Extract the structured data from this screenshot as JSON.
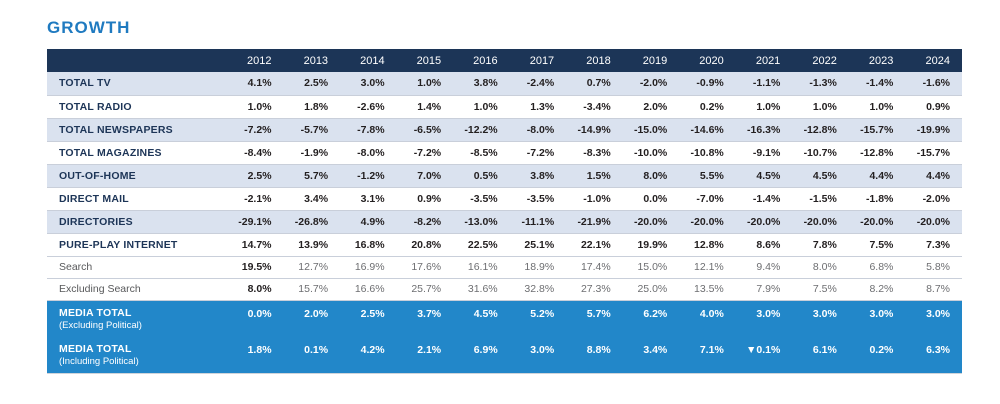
{
  "title": "GROWTH",
  "colors": {
    "title_blue": "#1F7AC0",
    "header_navy": "#1C3557",
    "stripe_light_blue": "#DAE2EF",
    "media_total_blue": "#2287C9",
    "label_navy": "#1D3557",
    "value_dark": "#231F20",
    "sub_gray": "#6D6E71"
  },
  "chart_data": {
    "type": "table",
    "title": "GROWTH",
    "columns": [
      "2012",
      "2013",
      "2014",
      "2015",
      "2016",
      "2017",
      "2018",
      "2019",
      "2020",
      "2021",
      "2022",
      "2023",
      "2024"
    ],
    "rows": [
      {
        "label": "TOTAL TV",
        "style": "main",
        "stripe": "light",
        "values": [
          "4.1%",
          "2.5%",
          "3.0%",
          "1.0%",
          "3.8%",
          "-2.4%",
          "0.7%",
          "-2.0%",
          "-0.9%",
          "-1.1%",
          "-1.3%",
          "-1.4%",
          "-1.6%"
        ]
      },
      {
        "label": "TOTAL RADIO",
        "style": "main",
        "stripe": "white",
        "values": [
          "1.0%",
          "1.8%",
          "-2.6%",
          "1.4%",
          "1.0%",
          "1.3%",
          "-3.4%",
          "2.0%",
          "0.2%",
          "1.0%",
          "1.0%",
          "1.0%",
          "0.9%"
        ]
      },
      {
        "label": "TOTAL NEWSPAPERS",
        "style": "main",
        "stripe": "light",
        "values": [
          "-7.2%",
          "-5.7%",
          "-7.8%",
          "-6.5%",
          "-12.2%",
          "-8.0%",
          "-14.9%",
          "-15.0%",
          "-14.6%",
          "-16.3%",
          "-12.8%",
          "-15.7%",
          "-19.9%"
        ]
      },
      {
        "label": "TOTAL MAGAZINES",
        "style": "main",
        "stripe": "white",
        "values": [
          "-8.4%",
          "-1.9%",
          "-8.0%",
          "-7.2%",
          "-8.5%",
          "-7.2%",
          "-8.3%",
          "-10.0%",
          "-10.8%",
          "-9.1%",
          "-10.7%",
          "-12.8%",
          "-15.7%"
        ]
      },
      {
        "label": "OUT-OF-HOME",
        "style": "main",
        "stripe": "light",
        "values": [
          "2.5%",
          "5.7%",
          "-1.2%",
          "7.0%",
          "0.5%",
          "3.8%",
          "1.5%",
          "8.0%",
          "5.5%",
          "4.5%",
          "4.5%",
          "4.4%",
          "4.4%"
        ]
      },
      {
        "label": "DIRECT MAIL",
        "style": "main",
        "stripe": "white",
        "values": [
          "-2.1%",
          "3.4%",
          "3.1%",
          "0.9%",
          "-3.5%",
          "-3.5%",
          "-1.0%",
          "0.0%",
          "-7.0%",
          "-1.4%",
          "-1.5%",
          "-1.8%",
          "-2.0%"
        ]
      },
      {
        "label": "DIRECTORIES",
        "style": "main",
        "stripe": "light",
        "values": [
          "-29.1%",
          "-26.8%",
          "4.9%",
          "-8.2%",
          "-13.0%",
          "-11.1%",
          "-21.9%",
          "-20.0%",
          "-20.0%",
          "-20.0%",
          "-20.0%",
          "-20.0%",
          "-20.0%"
        ]
      },
      {
        "label": "PURE-PLAY INTERNET",
        "style": "main",
        "stripe": "white",
        "values": [
          "14.7%",
          "13.9%",
          "16.8%",
          "20.8%",
          "22.5%",
          "25.1%",
          "22.1%",
          "19.9%",
          "12.8%",
          "8.6%",
          "7.8%",
          "7.5%",
          "7.3%"
        ]
      },
      {
        "label": "Search",
        "style": "sub",
        "stripe": "white",
        "values": [
          "19.5%",
          "12.7%",
          "16.9%",
          "17.6%",
          "16.1%",
          "18.9%",
          "17.4%",
          "15.0%",
          "12.1%",
          "9.4%",
          "8.0%",
          "6.8%",
          "5.8%"
        ]
      },
      {
        "label": "Excluding Search",
        "style": "sub",
        "stripe": "white",
        "values": [
          "8.0%",
          "15.7%",
          "16.6%",
          "25.7%",
          "31.6%",
          "32.8%",
          "27.3%",
          "25.0%",
          "13.5%",
          "7.9%",
          "7.5%",
          "8.2%",
          "8.7%"
        ]
      },
      {
        "label": "MEDIA TOTAL",
        "label_line2": "(Excluding Political)",
        "style": "total",
        "stripe": "blue",
        "values": [
          "0.0%",
          "2.0%",
          "2.5%",
          "3.7%",
          "4.5%",
          "5.2%",
          "5.7%",
          "6.2%",
          "4.0%",
          "3.0%",
          "3.0%",
          "3.0%",
          "3.0%"
        ]
      },
      {
        "label": "MEDIA TOTAL",
        "label_line2": "(Including Political)",
        "style": "total",
        "stripe": "blue",
        "values": [
          "1.8%",
          "0.1%",
          "4.2%",
          "2.1%",
          "6.9%",
          "3.0%",
          "8.8%",
          "3.4%",
          "7.1%",
          "▼0.1%",
          "6.1%",
          "0.2%",
          "6.3%"
        ]
      }
    ]
  }
}
